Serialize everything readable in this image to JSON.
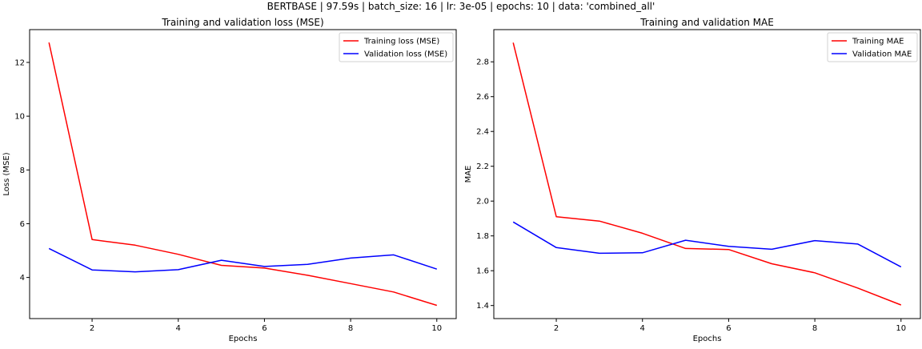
{
  "suptitle": "BERTBASE | 97.59s | batch_size: 16 | lr: 3e-05 | epochs: 10 | data: 'combined_all'",
  "chart_data": [
    {
      "type": "line",
      "title": "Training and validation loss (MSE)",
      "xlabel": "Epochs",
      "ylabel": "Loss (MSE)",
      "xlim": [
        0.55,
        10.45
      ],
      "ylim": [
        2.47,
        13.22
      ],
      "xticks": [
        2,
        4,
        6,
        8,
        10
      ],
      "yticks": [
        4,
        6,
        8,
        10,
        12
      ],
      "grid": false,
      "legend": "top-right",
      "x": [
        1,
        2,
        3,
        4,
        5,
        6,
        7,
        8,
        9,
        10
      ],
      "series": [
        {
          "name": "Training loss (MSE)",
          "color": "#ff0000",
          "values": [
            12.74,
            5.41,
            5.2,
            4.86,
            4.45,
            4.35,
            4.08,
            3.77,
            3.46,
            2.96
          ]
        },
        {
          "name": "Validation loss (MSE)",
          "color": "#0000ff",
          "values": [
            5.08,
            4.28,
            4.21,
            4.29,
            4.64,
            4.41,
            4.49,
            4.72,
            4.84,
            4.31
          ]
        }
      ]
    },
    {
      "type": "line",
      "title": "Training and validation MAE",
      "xlabel": "Epochs",
      "ylabel": "MAE",
      "xlim": [
        0.55,
        10.45
      ],
      "ylim": [
        1.325,
        2.985
      ],
      "xticks": [
        2,
        4,
        6,
        8,
        10
      ],
      "yticks": [
        1.4,
        1.6,
        1.8,
        2.0,
        2.2,
        2.4,
        2.6,
        2.8
      ],
      "yticklabels": [
        "1.4",
        "1.6",
        "1.8",
        "2.0",
        "2.2",
        "2.4",
        "2.6",
        "2.8"
      ],
      "grid": false,
      "legend": "top-right",
      "x": [
        1,
        2,
        3,
        4,
        5,
        6,
        7,
        8,
        9,
        10
      ],
      "series": [
        {
          "name": "Training MAE",
          "color": "#ff0000",
          "values": [
            2.91,
            1.91,
            1.885,
            1.815,
            1.728,
            1.722,
            1.64,
            1.588,
            1.5,
            1.403
          ]
        },
        {
          "name": "Validation MAE",
          "color": "#0000ff",
          "values": [
            1.88,
            1.733,
            1.7,
            1.703,
            1.775,
            1.74,
            1.723,
            1.773,
            1.753,
            1.622
          ]
        }
      ]
    }
  ]
}
